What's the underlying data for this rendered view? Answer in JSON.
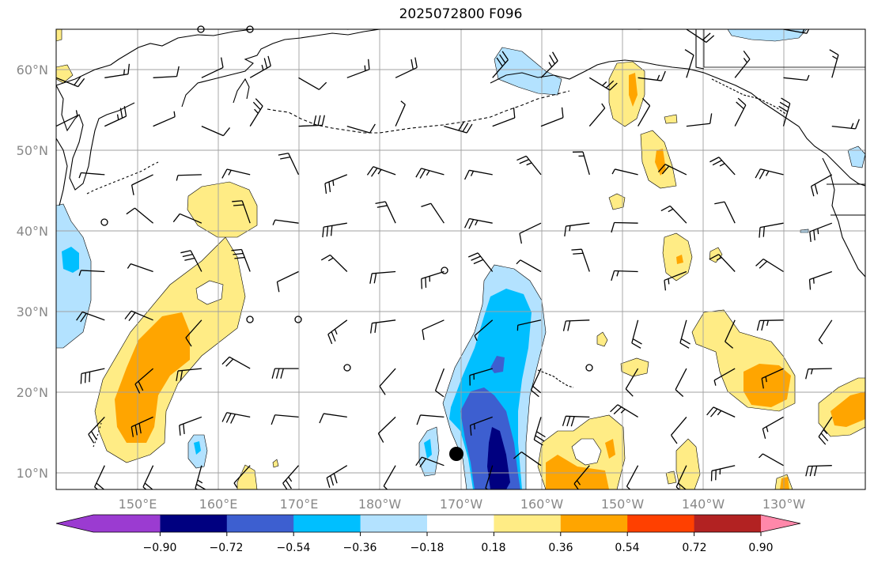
{
  "title": "2025072800 F096",
  "lat_labels": [
    "60°N",
    "50°N",
    "40°N",
    "30°N",
    "20°N",
    "10°N"
  ],
  "lon_labels": [
    "150°E",
    "160°E",
    "170°E",
    "180°W",
    "170°W",
    "160°W",
    "150°W",
    "140°W",
    "130°W"
  ],
  "colorbar": {
    "tick_labels": [
      "−0.90",
      "−0.72",
      "−0.54",
      "−0.36",
      "−0.18",
      "0.18",
      "0.36",
      "0.54",
      "0.72",
      "0.90"
    ],
    "colors": [
      "#9b3bd1",
      "#000080",
      "#3d5fd0",
      "#00bfff",
      "#b3e2ff",
      "#ffffff",
      "#ffec85",
      "#ffa500",
      "#ff4000",
      "#b22222",
      "#ff88aa"
    ]
  },
  "colors": {
    "grid": "#a0a0a0",
    "axis_label": "#888888",
    "coast": "#000000"
  }
}
